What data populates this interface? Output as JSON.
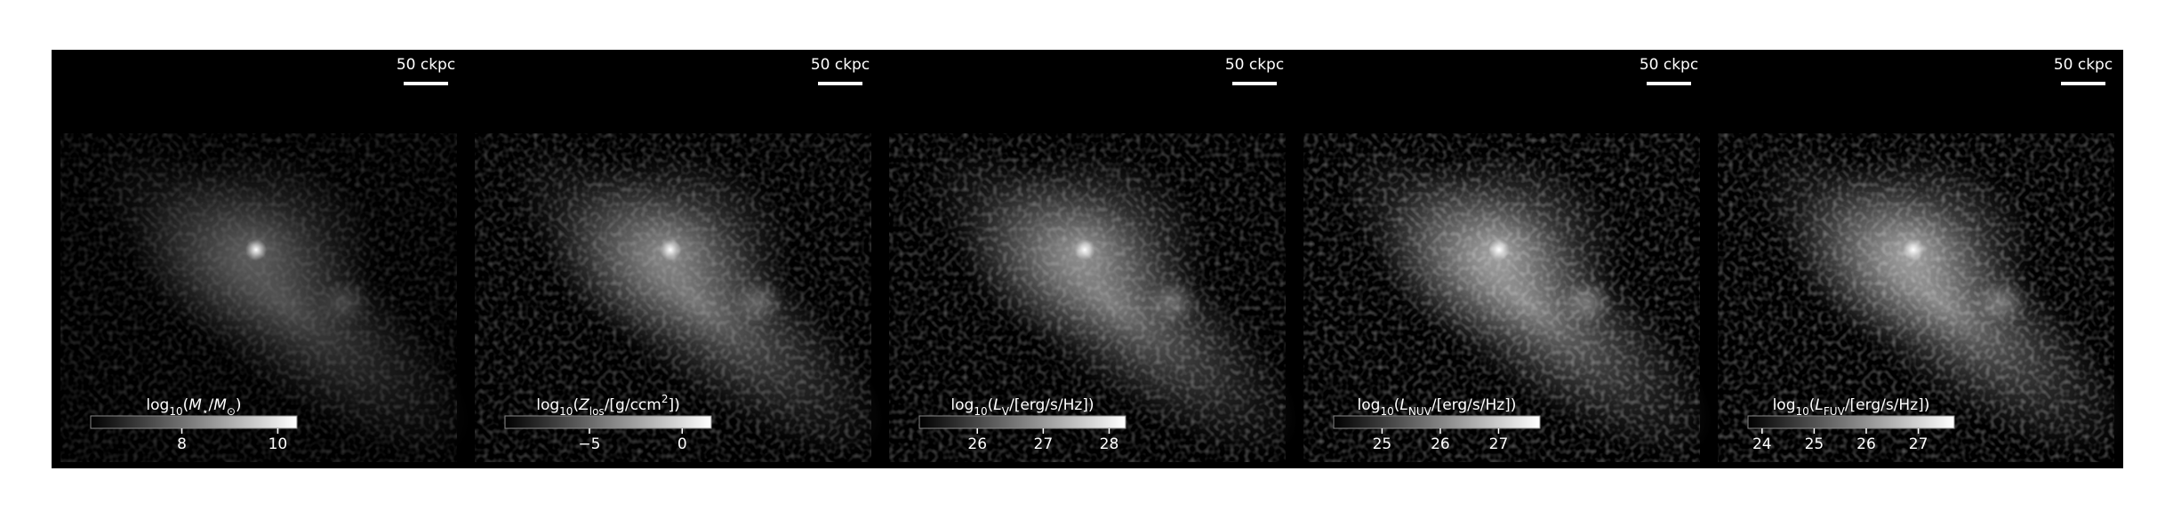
{
  "chart_data": [
    {
      "type": "image",
      "scale_bar": "50 ckpc",
      "colorbar_label": [
        {
          "text": "log"
        },
        {
          "text": "10",
          "style": "sub"
        },
        {
          "text": "("
        },
        {
          "text": "M",
          "style": "italic"
        },
        {
          "text": "⋆",
          "style": "sub"
        },
        {
          "text": "/"
        },
        {
          "text": "M",
          "style": "italic"
        },
        {
          "text": "⊙",
          "style": "sub"
        },
        {
          "text": ")"
        }
      ],
      "clim": [
        6.1,
        10.4
      ],
      "cticks": [
        8,
        10
      ]
    },
    {
      "type": "image",
      "scale_bar": "50 ckpc",
      "colorbar_label": [
        {
          "text": "log"
        },
        {
          "text": "10",
          "style": "sub"
        },
        {
          "text": "("
        },
        {
          "text": "Z",
          "style": "italic"
        },
        {
          "text": "los",
          "style": "sub"
        },
        {
          "text": "/[g/ccm"
        },
        {
          "text": "2",
          "style": "sup"
        },
        {
          "text": "])"
        }
      ],
      "clim": [
        -9.55,
        1.57
      ],
      "cticks": [
        {
          "value": -5,
          "label": "−5"
        },
        0
      ]
    },
    {
      "type": "image",
      "scale_bar": "50 ckpc",
      "colorbar_label": [
        {
          "text": "log"
        },
        {
          "text": "10",
          "style": "sub"
        },
        {
          "text": "("
        },
        {
          "text": "L",
          "style": "italic"
        },
        {
          "text": "V",
          "style": "sub"
        },
        {
          "text": "/[erg/s/Hz])"
        }
      ],
      "clim": [
        25.12,
        28.25
      ],
      "cticks": [
        26,
        27,
        28
      ]
    },
    {
      "type": "image",
      "scale_bar": "50 ckpc",
      "colorbar_label": [
        {
          "text": "log"
        },
        {
          "text": "10",
          "style": "sub"
        },
        {
          "text": "("
        },
        {
          "text": "L",
          "style": "italic"
        },
        {
          "text": "NUV",
          "style": "sub"
        },
        {
          "text": "/[erg/s/Hz])"
        }
      ],
      "clim": [
        24.17,
        27.71
      ],
      "cticks": [
        25,
        26,
        27
      ]
    },
    {
      "type": "image",
      "scale_bar": "50 ckpc",
      "colorbar_label": [
        {
          "text": "log"
        },
        {
          "text": "10",
          "style": "sub"
        },
        {
          "text": "("
        },
        {
          "text": "L",
          "style": "italic"
        },
        {
          "text": "FUV",
          "style": "sub"
        },
        {
          "text": "/[erg/s/Hz])"
        }
      ],
      "clim": [
        23.73,
        27.69
      ],
      "cticks": [
        24,
        25,
        26,
        27
      ]
    }
  ]
}
